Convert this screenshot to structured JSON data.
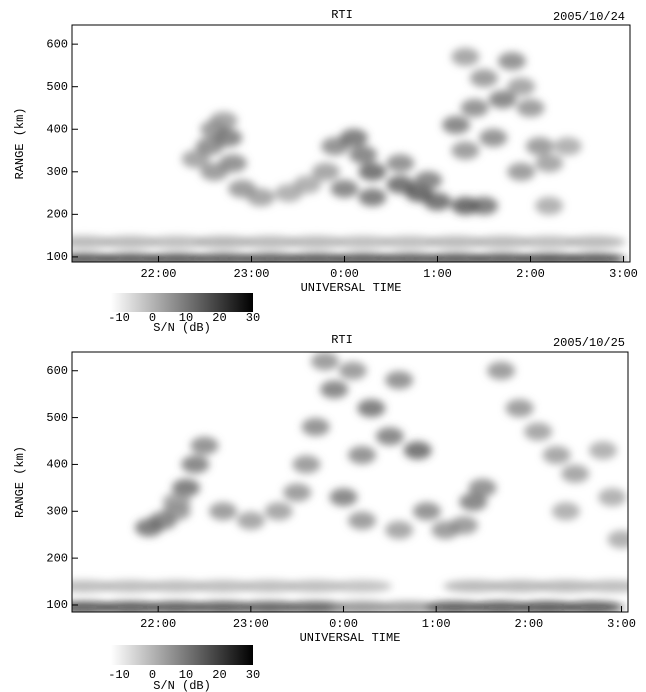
{
  "chart_data": [
    {
      "type": "rti",
      "title": "RTI",
      "date": "2005/10/24",
      "xlabel": "UNIVERSAL TIME",
      "ylabel": "RANGE (km)",
      "colorbar_label": "S/N  (dB)",
      "xlim": [
        21.07,
        27.07
      ],
      "xticks": [
        {
          "value": 22,
          "label": "22:00"
        },
        {
          "value": 23,
          "label": "23:00"
        },
        {
          "value": 24,
          "label": "0:00"
        },
        {
          "value": 25,
          "label": "1:00"
        },
        {
          "value": 26,
          "label": "2:00"
        },
        {
          "value": 27,
          "label": "3:00"
        }
      ],
      "ylim": [
        88,
        645
      ],
      "yticks": [
        100,
        200,
        300,
        400,
        500,
        600
      ],
      "clim": [
        -10,
        30
      ],
      "cticks": [
        -10,
        0,
        10,
        20,
        30
      ],
      "echoes": {
        "x": [
          22.4,
          22.55,
          22.6,
          22.7,
          22.75,
          22.8,
          22.6,
          22.9,
          23.1,
          23.4,
          23.6,
          23.8,
          23.9,
          24.1,
          24.2,
          24.3,
          24.0,
          24.3,
          24.6,
          24.8,
          25.0,
          25.3,
          25.5,
          24.6,
          24.9,
          25.3,
          25.2,
          25.4,
          25.5,
          25.8,
          25.9,
          26.0,
          25.6,
          26.1,
          26.2,
          26.4,
          26.2,
          25.3,
          25.7,
          25.9
        ],
        "y": [
          330,
          360,
          400,
          420,
          380,
          320,
          300,
          260,
          240,
          250,
          270,
          300,
          360,
          380,
          340,
          300,
          260,
          240,
          270,
          250,
          230,
          220,
          220,
          320,
          280,
          350,
          410,
          450,
          520,
          560,
          500,
          450,
          380,
          360,
          320,
          360,
          220,
          570,
          470,
          300
        ],
        "values": [
          8,
          12,
          10,
          8,
          14,
          12,
          10,
          10,
          8,
          6,
          6,
          8,
          12,
          16,
          14,
          18,
          14,
          16,
          18,
          20,
          18,
          20,
          16,
          12,
          14,
          10,
          14,
          12,
          10,
          12,
          8,
          10,
          12,
          10,
          8,
          6,
          6,
          8,
          14,
          10
        ]
      },
      "clutter": {
        "x": [
          21.2,
          21.7,
          22.2,
          22.7,
          23.2,
          23.7,
          24.2,
          24.7,
          25.2,
          25.7,
          26.2,
          26.7,
          21.2,
          21.7,
          22.2,
          22.7,
          23.2,
          23.7,
          24.2,
          24.7,
          25.2,
          25.7,
          26.2,
          26.7
        ],
        "y": [
          95,
          95,
          95,
          95,
          95,
          95,
          95,
          95,
          95,
          95,
          95,
          95,
          135,
          135,
          135,
          135,
          135,
          135,
          135,
          135,
          135,
          135,
          135,
          135
        ],
        "values": [
          25,
          25,
          25,
          24,
          24,
          25,
          25,
          24,
          25,
          25,
          26,
          25,
          5,
          5,
          4,
          6,
          5,
          5,
          4,
          4,
          5,
          5,
          4,
          5
        ]
      }
    },
    {
      "type": "rti",
      "title": "RTI",
      "date": "2005/10/25",
      "xlabel": "UNIVERSAL TIME",
      "ylabel": "RANGE (km)",
      "colorbar_label": "S/N  (dB)",
      "xlim": [
        21.07,
        27.07
      ],
      "xticks": [
        {
          "value": 22,
          "label": "22:00"
        },
        {
          "value": 23,
          "label": "23:00"
        },
        {
          "value": 24,
          "label": "0:00"
        },
        {
          "value": 25,
          "label": "1:00"
        },
        {
          "value": 26,
          "label": "2:00"
        },
        {
          "value": 27,
          "label": "3:00"
        }
      ],
      "ylim": [
        85,
        640
      ],
      "yticks": [
        100,
        200,
        300,
        400,
        500,
        600
      ],
      "clim": [
        -10,
        30
      ],
      "cticks": [
        -10,
        0,
        10,
        20,
        30
      ],
      "echoes": {
        "x": [
          21.9,
          22.05,
          22.2,
          22.3,
          22.4,
          22.5,
          22.2,
          22.7,
          23.0,
          23.3,
          23.5,
          23.6,
          23.7,
          23.9,
          24.1,
          24.3,
          24.5,
          24.8,
          24.2,
          24.0,
          24.2,
          24.6,
          24.9,
          25.1,
          25.3,
          25.4,
          25.5,
          25.7,
          25.9,
          26.1,
          26.3,
          26.5,
          26.4,
          26.8,
          26.9,
          27.0,
          24.6,
          23.8
        ],
        "y": [
          265,
          280,
          300,
          350,
          400,
          440,
          320,
          300,
          280,
          300,
          340,
          400,
          480,
          560,
          600,
          520,
          460,
          430,
          420,
          330,
          280,
          260,
          300,
          260,
          270,
          320,
          350,
          600,
          520,
          470,
          420,
          380,
          300,
          430,
          330,
          240,
          580,
          620
        ],
        "values": [
          16,
          14,
          10,
          16,
          14,
          12,
          8,
          10,
          8,
          8,
          10,
          10,
          12,
          14,
          10,
          16,
          14,
          18,
          12,
          14,
          10,
          8,
          12,
          10,
          10,
          14,
          12,
          10,
          10,
          8,
          8,
          8,
          6,
          6,
          6,
          6,
          12,
          10
        ]
      },
      "clutter": {
        "x": [
          21.2,
          21.7,
          22.2,
          22.7,
          23.2,
          23.7,
          24.2,
          24.7,
          25.2,
          25.7,
          26.2,
          26.7,
          21.2,
          21.7,
          22.2,
          22.7,
          23.2,
          23.7,
          24.2,
          25.4,
          25.9,
          26.4,
          26.9
        ],
        "y": [
          95,
          95,
          95,
          95,
          95,
          95,
          95,
          95,
          95,
          95,
          95,
          95,
          140,
          140,
          140,
          140,
          140,
          140,
          140,
          140,
          140,
          140,
          140
        ],
        "values": [
          25,
          25,
          24,
          24,
          23,
          22,
          12,
          10,
          24,
          25,
          26,
          25,
          4,
          4,
          4,
          4,
          4,
          4,
          3,
          5,
          5,
          5,
          4
        ]
      }
    }
  ]
}
